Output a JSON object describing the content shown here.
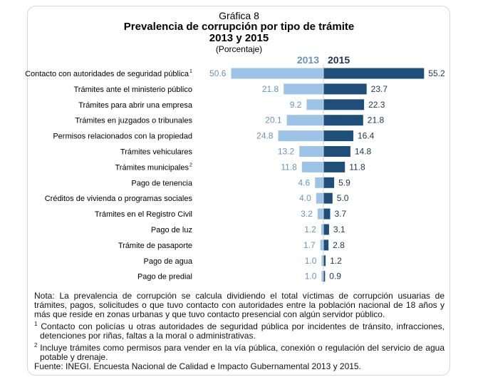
{
  "chart_data": {
    "type": "bar",
    "orientation": "horizontal-diverging",
    "pretitle": "Gráfica 8",
    "title": "Prevalencia de corrupción por tipo de trámite",
    "subtitle": "2013 y 2015",
    "unit_label": "(Porcentaje)",
    "categories": [
      "Contacto con autoridades de seguridad pública",
      "Trámites ante el ministerio público",
      "Trámites para abrir una empresa",
      "Trámites en juzgados o tribunales",
      "Permisos relacionados con la propiedad",
      "Trámites vehiculares",
      "Trámites municipales",
      "Pago de tenencia",
      "Créditos de vivienda o programas sociales",
      "Trámites en el Registro Civil",
      "Pago de luz",
      "Trámite de pasaporte",
      "Pago de agua",
      "Pago de predial"
    ],
    "category_superscripts": [
      "1",
      "",
      "",
      "",
      "",
      "",
      "2",
      "",
      "",
      "",
      "",
      "",
      "",
      ""
    ],
    "series": [
      {
        "name": "2013",
        "color": "#9dc3e6",
        "label_color": "#6b93bb",
        "values": [
          50.6,
          21.8,
          9.2,
          20.1,
          24.8,
          13.2,
          11.8,
          4.6,
          4.0,
          3.2,
          1.2,
          1.7,
          1.0,
          1.0
        ]
      },
      {
        "name": "2015",
        "color": "#1f4e79",
        "label_color": "#1f3550",
        "values": [
          55.2,
          23.7,
          22.3,
          21.8,
          16.4,
          14.8,
          11.8,
          5.9,
          5.0,
          3.7,
          3.1,
          2.8,
          1.2,
          0.9
        ]
      }
    ],
    "legend_placement": "top-center",
    "grid": false
  },
  "notes": {
    "nota_label": "Nota:",
    "nota": "La prevalencia de corrupción se calcula dividiendo el total víctimas de corrupción usuarias de trámites, pagos, solicitudes o que tuvo contacto con autoridades entre la población nacional de 18 años y más que reside en zonas urbanas y que tuvo contacto presencial con algún servidor público.",
    "fn1_mark": "1",
    "fn1": "Contacto con policías u otras autoridades de seguridad pública por incidentes de tránsito, infracciones, detenciones por riñas, faltas a la moral o administrativas.",
    "fn2_mark": "2",
    "fn2": "Incluye trámites como permisos para vender en la vía pública, conexión o regulación del servicio de agua potable y drenaje.",
    "source": "Fuente: INEGI. Encuesta Nacional de Calidad e Impacto Gubernamental 2013 y 2015."
  }
}
